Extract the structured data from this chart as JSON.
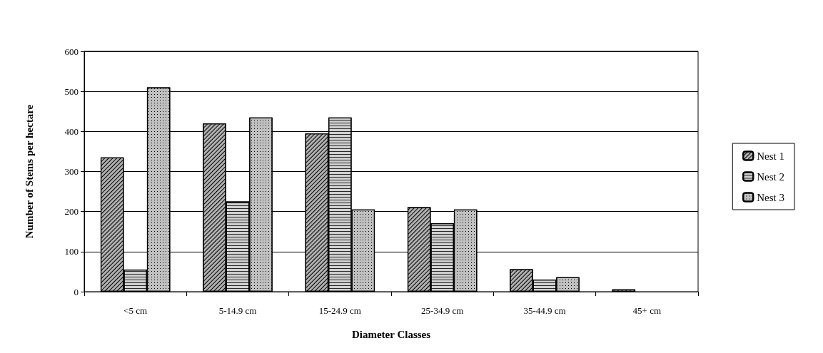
{
  "chart_data": {
    "type": "bar",
    "xlabel": "Diameter Classes",
    "ylabel": "Number of Stems per hectare",
    "categories": [
      "<5 cm",
      "5-14.9 cm",
      "15-24.9 cm",
      "25-34.9 cm",
      "35-44.9 cm",
      "45+ cm"
    ],
    "series": [
      {
        "name": "Nest 1",
        "color": "#b0b0b0",
        "values": [
          335,
          420,
          395,
          211,
          56,
          6
        ]
      },
      {
        "name": "Nest 2",
        "color": "#d0d0d0",
        "values": [
          55,
          225,
          435,
          171,
          30,
          null
        ]
      },
      {
        "name": "Nest 3",
        "color": "#c0c0c0",
        "values": [
          510,
          435,
          205,
          205,
          36,
          null
        ]
      }
    ],
    "ylim": [
      0,
      600
    ],
    "yticks": [
      0,
      100,
      200,
      300,
      400,
      500,
      600
    ],
    "grid": "y",
    "legend": "right"
  }
}
